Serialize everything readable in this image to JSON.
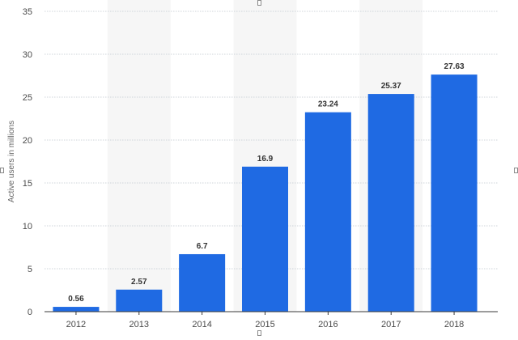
{
  "colors": {
    "bar": "#1f6ae3",
    "band": "#f6f6f6",
    "grid": "#cfd4da",
    "axis": "#3a3a3a",
    "tick_text": "#4a4a4a",
    "label_text": "#333333",
    "title_text": "#666666"
  },
  "chart_data": {
    "type": "bar",
    "title": "",
    "xlabel": "",
    "ylabel": "Active users in millions",
    "categories": [
      "2012",
      "2013",
      "2014",
      "2015",
      "2016",
      "2017",
      "2018"
    ],
    "series": [
      {
        "values": [
          0.56,
          2.57,
          6.7,
          16.9,
          23.24,
          25.37,
          27.63
        ]
      }
    ],
    "data_labels": [
      "0.56",
      "2.57",
      "6.7",
      "16.9",
      "23.24",
      "25.37",
      "27.63"
    ],
    "ylim": [
      0,
      35
    ],
    "yticks": [
      0,
      5,
      10,
      15,
      20,
      25,
      30,
      35
    ],
    "ytick_labels": [
      "0",
      "5",
      "10",
      "15",
      "20",
      "25",
      "30",
      "35"
    ],
    "grid": true,
    "alternating_bands": true,
    "legend": "none"
  }
}
